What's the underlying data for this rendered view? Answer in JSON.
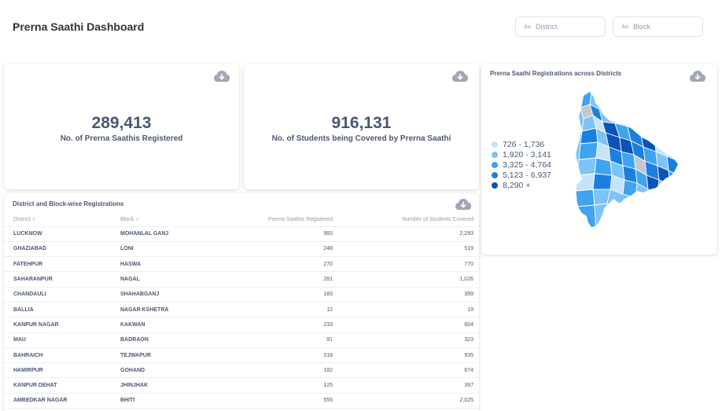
{
  "header": {
    "title": "Prerna Saathi Dashboard"
  },
  "filters": [
    {
      "icon": "Aa",
      "label": "District"
    },
    {
      "icon": "Aa",
      "label": "Block"
    }
  ],
  "kpis": [
    {
      "value": "289,413",
      "label": "No. of Prerna Saathis Registered"
    },
    {
      "value": "916,131",
      "label": "No. of Students being Covered by Prerna Saathi"
    }
  ],
  "map": {
    "title": "Prerna Saathi Registrations across Districts",
    "legend": [
      {
        "label": "726 - 1,736",
        "color": "#c5e3fb"
      },
      {
        "label": "1,920 - 3,141",
        "color": "#7cc3f7"
      },
      {
        "label": "3,325 - 4,764",
        "color": "#3fa3ef"
      },
      {
        "label": "5,123 - 6,937",
        "color": "#1b7fe0"
      },
      {
        "label": "8,290 +",
        "color": "#0a53b8"
      }
    ],
    "no_data_color": "#c4c7cc"
  },
  "table": {
    "title": "District and Block-wise Registrations",
    "columns": [
      "District",
      "Block",
      "Prerna Saathis Registered",
      "Number of Students Covered"
    ],
    "rows": [
      [
        "LUCKNOW",
        "MOHANLAL GANJ",
        "983",
        "2,293"
      ],
      [
        "GHAZIABAD",
        "LONI",
        "248",
        "519"
      ],
      [
        "FATEHPUR",
        "HASWA",
        "270",
        "770"
      ],
      [
        "SAHARANPUR",
        "NAGAL",
        "281",
        "1,026"
      ],
      [
        "CHANDAULI",
        "SHAHABGANJ",
        "183",
        "399"
      ],
      [
        "BALLIA",
        "NAGAR KSHETRA",
        "12",
        "19"
      ],
      [
        "KANPUR NAGAR",
        "KAKWAN",
        "233",
        "604"
      ],
      [
        "MAU",
        "BADRAON",
        "91",
        "323"
      ],
      [
        "BAHRAICH",
        "TEJWAPUR",
        "318",
        "935"
      ],
      [
        "HAMIRPUR",
        "GOHAND",
        "182",
        "674"
      ],
      [
        "KANPUR DEHAT",
        "JHINJHAK",
        "125",
        "397"
      ],
      [
        "AMBEDKAR NAGAR",
        "BHITI",
        "555",
        "2,025"
      ]
    ]
  },
  "icons": {
    "download": "download-cloud-icon"
  }
}
